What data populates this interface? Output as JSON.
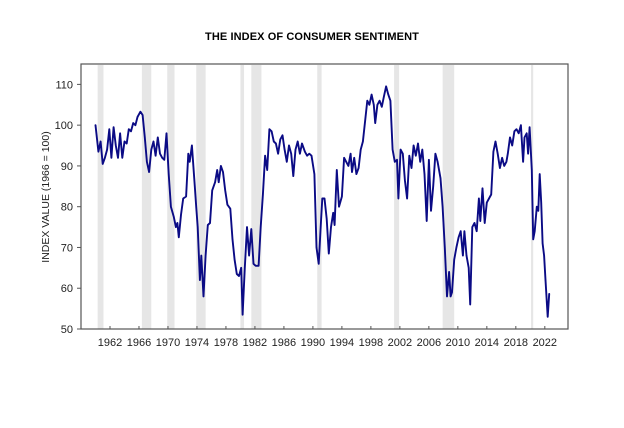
{
  "chart_data": {
    "type": "line",
    "title": "THE INDEX OF CONSUMER SENTIMENT",
    "xlabel": "",
    "ylabel": "INDEX VALUE (1966 = 100)",
    "xlim": [
      1958,
      2025.2
    ],
    "ylim": [
      50,
      115
    ],
    "y_ticks": [
      50,
      60,
      70,
      80,
      90,
      100,
      110
    ],
    "x_ticks": [
      1962,
      1966,
      1970,
      1974,
      1978,
      1982,
      1986,
      1990,
      1994,
      1998,
      2002,
      2006,
      2010,
      2014,
      2018,
      2022
    ],
    "x_tick_labels": [
      "1962",
      "1966",
      "1970",
      "1974",
      "1978",
      "1982",
      "1986",
      "1990",
      "1994",
      "1998",
      "2002",
      "2006",
      "2010",
      "2014",
      "2018",
      "2022"
    ],
    "grid": false,
    "legend": "none",
    "colors": {
      "line": "#0b0b85",
      "recession": "#e6e6e6",
      "axis": "#555555"
    },
    "recessions": [
      [
        1960.3,
        1961.1
      ],
      [
        1966.4,
        1967.7
      ],
      [
        1969.9,
        1970.9
      ],
      [
        1973.9,
        1975.2
      ],
      [
        1980.0,
        1980.5
      ],
      [
        1981.5,
        1982.9
      ],
      [
        1990.6,
        1991.2
      ],
      [
        2001.2,
        2001.9
      ],
      [
        2007.9,
        2009.5
      ],
      [
        2020.1,
        2020.4
      ]
    ],
    "series": [
      {
        "name": "Index of Consumer Sentiment",
        "x": [
          1960.0,
          1960.4,
          1960.7,
          1961.0,
          1961.3,
          1961.6,
          1961.9,
          1962.2,
          1962.5,
          1962.8,
          1963.1,
          1963.4,
          1963.7,
          1964.0,
          1964.3,
          1964.6,
          1964.9,
          1965.2,
          1965.5,
          1965.8,
          1966.2,
          1966.5,
          1966.8,
          1967.1,
          1967.4,
          1967.7,
          1968.0,
          1968.3,
          1968.6,
          1968.9,
          1969.2,
          1969.5,
          1969.8,
          1970.1,
          1970.4,
          1970.8,
          1971.1,
          1971.3,
          1971.5,
          1971.8,
          1972.1,
          1972.5,
          1972.8,
          1973.0,
          1973.3,
          1973.7,
          1973.9,
          1974.1,
          1974.4,
          1974.6,
          1974.9,
          1975.2,
          1975.5,
          1975.8,
          1976.1,
          1976.5,
          1976.8,
          1977.0,
          1977.3,
          1977.6,
          1977.9,
          1978.2,
          1978.6,
          1978.9,
          1979.2,
          1979.5,
          1979.8,
          1980.1,
          1980.3,
          1980.6,
          1980.9,
          1981.2,
          1981.5,
          1981.8,
          1982.1,
          1982.5,
          1982.8,
          1983.1,
          1983.4,
          1983.7,
          1984.0,
          1984.3,
          1984.6,
          1984.9,
          1985.2,
          1985.5,
          1985.8,
          1986.1,
          1986.4,
          1986.7,
          1987.0,
          1987.3,
          1987.6,
          1987.9,
          1988.2,
          1988.5,
          1988.9,
          1989.2,
          1989.5,
          1989.8,
          1990.2,
          1990.5,
          1990.8,
          1991.1,
          1991.3,
          1991.6,
          1991.9,
          1992.2,
          1992.5,
          1992.8,
          1993.0,
          1993.3,
          1993.6,
          1994.0,
          1994.3,
          1994.6,
          1994.9,
          1995.2,
          1995.4,
          1995.7,
          1996.0,
          1996.3,
          1996.6,
          1996.9,
          1997.2,
          1997.5,
          1997.8,
          1998.1,
          1998.4,
          1998.6,
          1998.9,
          1999.2,
          1999.5,
          1999.8,
          2000.1,
          2000.4,
          2000.7,
          2001.0,
          2001.3,
          2001.6,
          2001.8,
          2002.1,
          2002.4,
          2002.7,
          2003.0,
          2003.3,
          2003.6,
          2003.9,
          2004.2,
          2004.5,
          2004.8,
          2005.1,
          2005.4,
          2005.7,
          2006.0,
          2006.3,
          2006.6,
          2006.9,
          2007.2,
          2007.6,
          2007.9,
          2008.2,
          2008.5,
          2008.8,
          2009.0,
          2009.2,
          2009.5,
          2009.8,
          2010.1,
          2010.4,
          2010.7,
          2010.9,
          2011.2,
          2011.5,
          2011.7,
          2012.0,
          2012.3,
          2012.6,
          2012.9,
          2013.1,
          2013.4,
          2013.7,
          2014.0,
          2014.3,
          2014.6,
          2014.9,
          2015.2,
          2015.5,
          2015.8,
          2016.1,
          2016.4,
          2016.7,
          2016.9,
          2017.2,
          2017.5,
          2017.8,
          2018.1,
          2018.4,
          2018.7,
          2019.0,
          2019.2,
          2019.5,
          2019.7,
          2019.9,
          2020.2,
          2020.4,
          2020.6,
          2020.9,
          2021.1,
          2021.3,
          2021.5,
          2021.7,
          2021.9,
          2022.1,
          2022.4,
          2022.6
        ],
        "values": [
          100,
          93.5,
          96,
          90.5,
          92,
          94,
          99,
          92,
          99.5,
          95,
          92,
          98,
          92,
          96,
          95.5,
          99,
          98.5,
          100.5,
          100,
          102,
          103.3,
          102.5,
          97,
          91,
          88.5,
          94,
          96,
          92.5,
          97,
          93,
          92,
          91.5,
          98,
          88,
          80,
          77.5,
          75,
          76,
          72.5,
          78,
          82,
          82.5,
          93,
          91,
          95,
          85,
          80,
          75,
          62,
          68,
          58,
          68,
          75.5,
          76,
          84,
          86,
          89,
          86,
          90,
          88.5,
          84,
          80.5,
          79.5,
          72,
          67,
          63.5,
          63,
          65,
          53.5,
          65,
          75,
          68,
          74.5,
          66,
          65.5,
          65.5,
          75,
          83,
          92.5,
          89,
          99,
          98.5,
          96,
          95.5,
          93,
          96.5,
          97.5,
          94,
          91,
          95,
          93,
          87.5,
          94,
          96,
          93,
          95.5,
          93.5,
          92.5,
          93,
          92.5,
          88,
          70,
          66,
          76,
          82,
          82,
          77,
          68.5,
          75,
          78.5,
          75.5,
          89,
          80,
          82.5,
          92,
          91,
          90,
          93,
          88.5,
          92,
          88,
          89.5,
          94,
          96,
          101,
          106,
          105,
          107.5,
          105,
          100.5,
          105,
          106,
          104.5,
          107,
          109.5,
          107.5,
          106,
          94,
          91,
          91.5,
          82,
          94,
          93,
          86.5,
          82,
          92.5,
          89.5,
          95,
          92.5,
          95.5,
          91,
          94,
          88,
          76.5,
          91.5,
          79,
          85,
          93,
          91,
          87,
          80,
          70,
          58,
          64,
          58,
          59,
          67,
          70,
          72.5,
          74,
          68,
          74,
          68,
          65,
          56,
          75,
          76,
          74,
          82,
          76.5,
          84.5,
          76,
          81,
          82,
          83,
          93.5,
          96,
          93,
          89.5,
          92,
          90,
          91,
          93,
          97,
          95,
          98.5,
          99,
          98,
          100,
          91,
          97,
          98,
          93,
          99.5,
          89,
          72,
          74,
          80,
          79,
          88,
          81,
          71,
          68,
          62,
          53,
          58.6
        ]
      }
    ]
  }
}
